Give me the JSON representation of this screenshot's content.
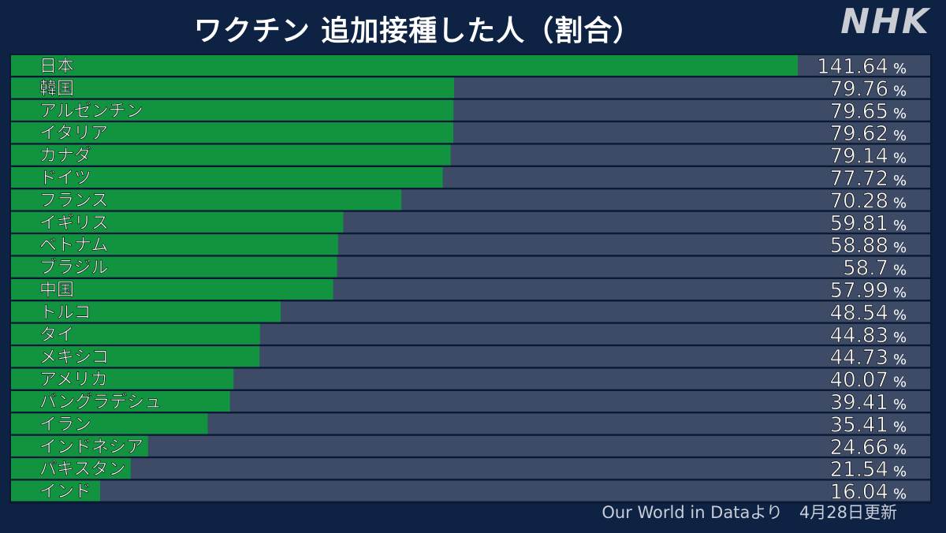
{
  "header": {
    "title": "ワクチン 追加接種した人（割合）",
    "logo_text": "NHK"
  },
  "footer": {
    "source": "Our World in Dataより　4月28日更新"
  },
  "colors": {
    "background": "#0e2244",
    "bar_fill": "#11933f",
    "bar_track": "#3e4b66",
    "row_gap": "#0a1a35",
    "label": "#ffffff"
  },
  "chart_data": {
    "type": "bar",
    "orientation": "horizontal",
    "value_suffix": "%",
    "xlim": [
      0,
      141.64
    ],
    "grid": false,
    "categories": [
      "日本",
      "韓国",
      "アルゼンチン",
      "イタリア",
      "カナダ",
      "ドイツ",
      "フランス",
      "イギリス",
      "ベトナム",
      "ブラジル",
      "中国",
      "トルコ",
      "タイ",
      "メキシコ",
      "アメリカ",
      "バングラデシュ",
      "イラン",
      "インドネシア",
      "パキスタン",
      "インド"
    ],
    "values": [
      141.64,
      79.76,
      79.65,
      79.62,
      79.14,
      77.72,
      70.28,
      59.81,
      58.88,
      58.7,
      57.99,
      48.54,
      44.83,
      44.73,
      40.07,
      39.41,
      35.41,
      24.66,
      21.54,
      16.04
    ],
    "value_labels": [
      "141.64",
      "79.76",
      "79.65",
      "79.62",
      "79.14",
      "77.72",
      "70.28",
      "59.81",
      "58.88",
      "58.7",
      "57.99",
      "48.54",
      "44.83",
      "44.73",
      "40.07",
      "39.41",
      "35.41",
      "24.66",
      "21.54",
      "16.04"
    ]
  }
}
